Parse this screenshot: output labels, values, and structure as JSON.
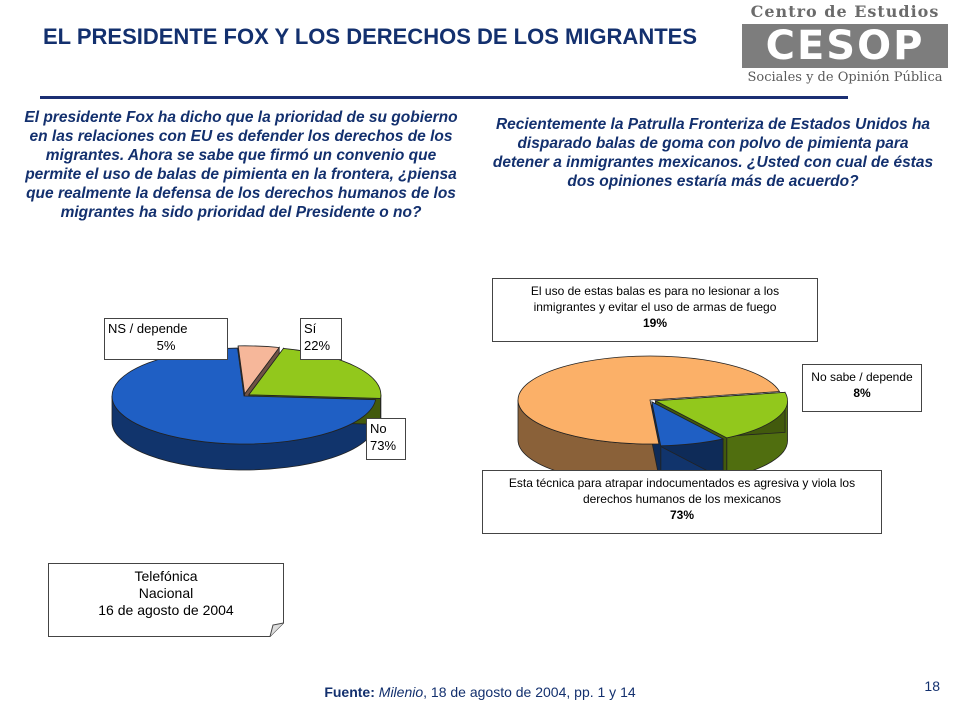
{
  "title": "EL PRESIDENTE FOX Y LOS DERECHOS DE LOS MIGRANTES",
  "logo": {
    "top": "Centro de Estudios",
    "mark": "CESOP",
    "bottom": "Sociales y de Opinión Pública"
  },
  "question_left": "El presidente Fox ha dicho que la prioridad de su gobierno en las relaciones con EU es defender los derechos de los migrantes. Ahora se sabe que firmó un convenio que permite el uso de balas de pimienta en la frontera, ¿piensa que realmente la defensa de los derechos humanos de los migrantes ha sido prioridad del Presidente o no?",
  "question_right": "Recientemente la Patrulla Fronteriza de Estados Unidos ha disparado balas de goma con polvo de pimienta para detener a inmigrantes mexicanos. ¿Usted con cual de éstas dos opiniones estaría más de acuerdo?",
  "survey": {
    "line1": "Telefónica",
    "line2": "Nacional",
    "line3": "16 de agosto de 2004"
  },
  "footer": {
    "label": "Fuente:",
    "publication": "Milenio",
    "detail": ", 18 de agosto de 2004, pp. 1 y 14"
  },
  "page_number": "18",
  "chart_data": [
    {
      "type": "pie",
      "categories": [
        "No",
        "NS / depende",
        "Sí"
      ],
      "values": [
        73,
        5,
        22
      ],
      "labels": [
        {
          "name": "No",
          "value": "73%"
        },
        {
          "name": "NS / depende",
          "value": "5%"
        },
        {
          "name": "Sí",
          "value": "22%"
        }
      ],
      "colors": [
        "#1f5fc4",
        "#f6b79a",
        "#92c81c"
      ],
      "exploded": [
        "NS / depende",
        "Sí"
      ]
    },
    {
      "type": "pie",
      "categories": [
        "Esta técnica para atrapar indocumentados es agresiva y viola los derechos humanos de los mexicanos",
        "El uso de estas balas es para no lesionar a los inmigrantes y evitar el uso de armas de fuego",
        "No sabe / depende"
      ],
      "values": [
        73,
        19,
        8
      ],
      "labels": [
        {
          "name": "Esta técnica para atrapar indocumentados es agresiva y viola los derechos humanos de los mexicanos",
          "value": "73%"
        },
        {
          "name": "El uso de estas balas es para no lesionar a los inmigrantes y evitar el uso de armas de fuego",
          "value": "19%"
        },
        {
          "name": "No sabe / depende",
          "value": "8%"
        }
      ],
      "colors": [
        "#fbb068",
        "#92c81c",
        "#1f5fc4"
      ],
      "exploded": [
        "El uso de estas balas es para no lesionar a los inmigrantes y evitar el uso de armas de fuego",
        "No sabe / depende"
      ]
    }
  ]
}
